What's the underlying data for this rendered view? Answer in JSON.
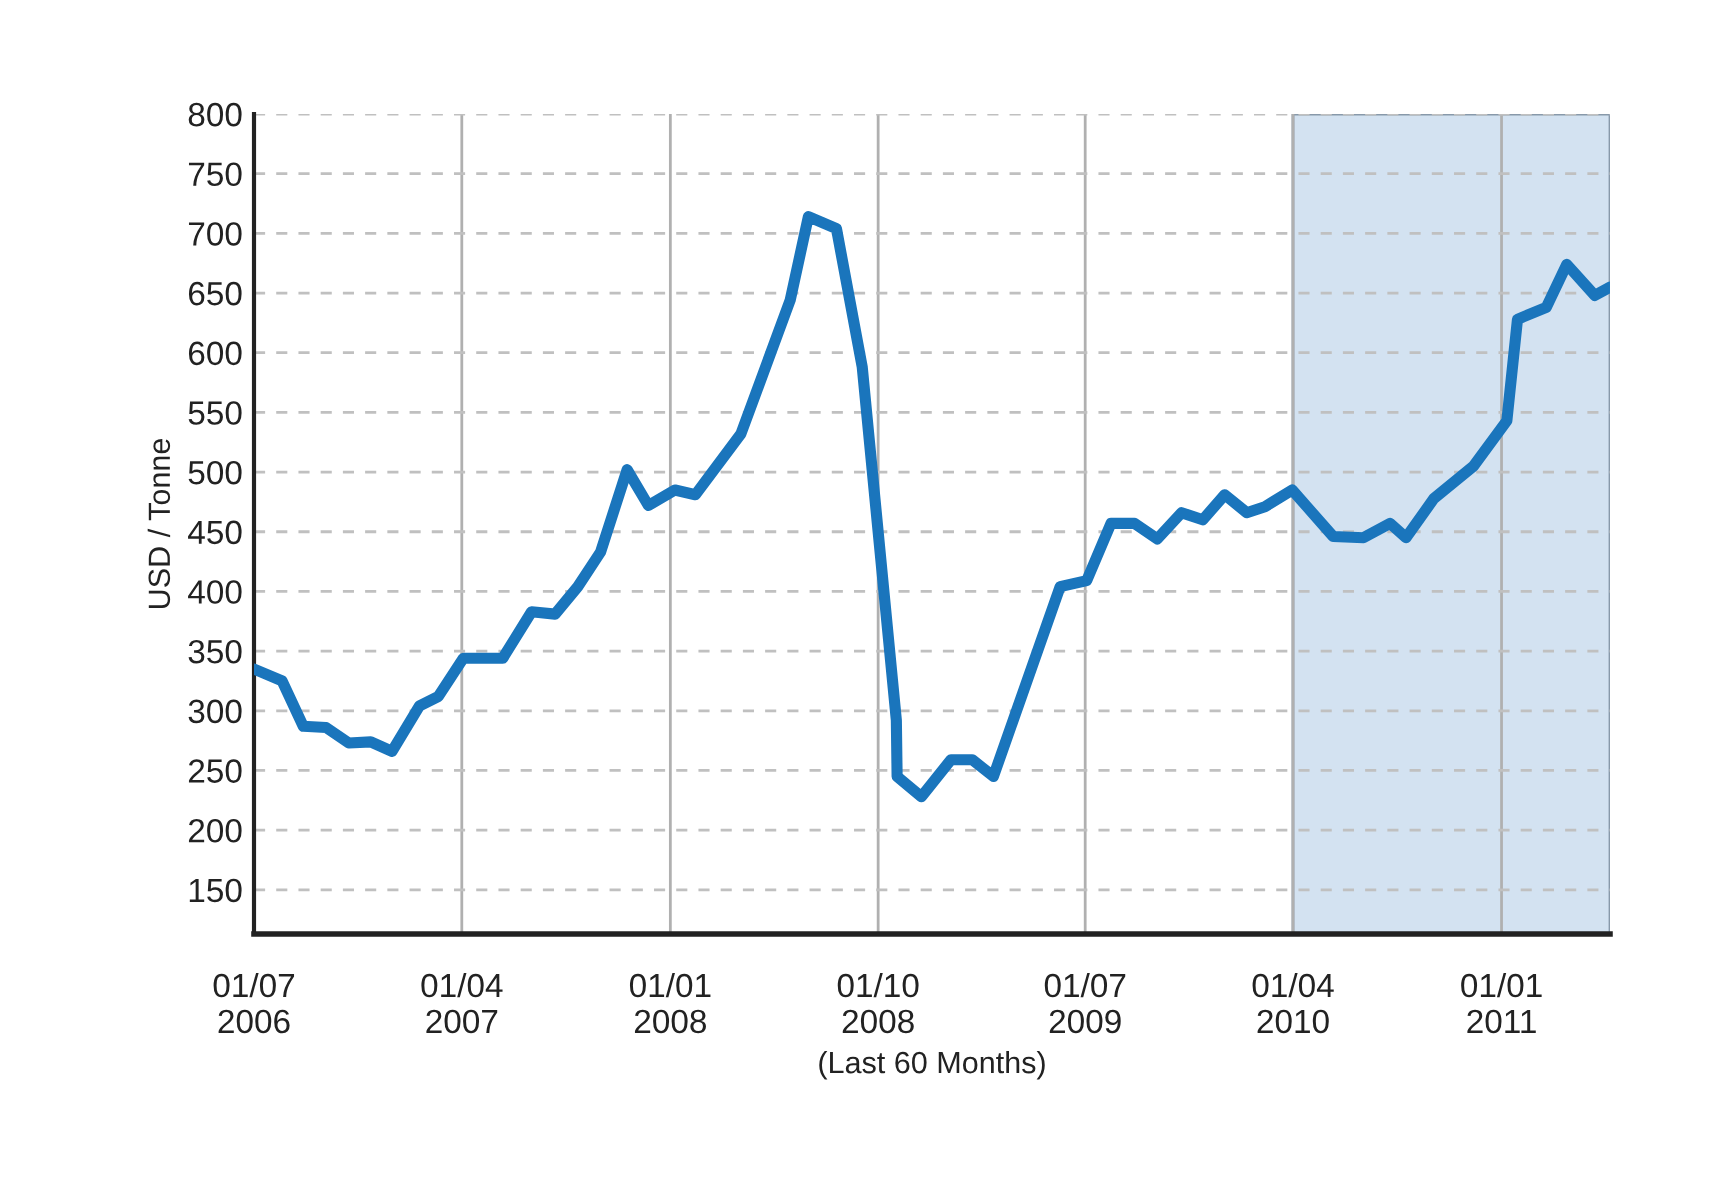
{
  "chart_data": {
    "type": "line",
    "xlabel": "(Last 60 Months)",
    "ylabel": "USD / Tonne",
    "x": [
      "2006-07-01",
      "2006-08-07",
      "2006-09-04",
      "2006-10-04",
      "2006-11-03",
      "2006-12-02",
      "2006-12-30",
      "2007-02-04",
      "2007-03-01",
      "2007-04-03",
      "2007-05-25",
      "2007-07-02",
      "2007-08-02",
      "2007-09-01",
      "2007-10-01",
      "2007-11-05",
      "2007-12-03",
      "2008-01-07",
      "2008-02-03",
      "2008-04-03",
      "2008-06-07",
      "2008-07-01",
      "2008-08-07",
      "2008-09-10",
      "2008-10-25",
      "2008-10-26",
      "2008-11-27",
      "2009-01-05",
      "2009-02-02",
      "2009-03-02",
      "2009-05-29",
      "2009-07-03",
      "2009-08-04",
      "2009-09-04",
      "2009-10-04",
      "2009-11-05",
      "2009-12-03",
      "2010-01-01",
      "2010-01-30",
      "2010-02-23",
      "2010-03-31",
      "2010-05-24",
      "2010-07-03",
      "2010-08-07",
      "2010-08-28",
      "2010-10-04",
      "2010-11-25",
      "2011-01-08",
      "2011-01-22",
      "2011-03-01",
      "2011-03-28",
      "2011-05-04",
      "2011-05-24"
    ],
    "series": [
      {
        "color": "#1a75bc",
        "values": [
          335,
          325,
          287,
          286,
          273,
          274,
          266,
          304,
          312,
          344,
          344,
          383,
          381,
          404,
          433,
          502,
          472,
          485,
          481,
          532,
          644,
          714,
          704,
          588,
          292,
          245,
          228,
          259,
          259,
          245,
          404,
          409,
          457,
          457,
          444,
          466,
          460,
          481,
          466,
          471,
          485,
          446,
          445,
          457,
          445,
          478,
          505,
          543,
          628,
          638,
          674,
          648,
          655
        ]
      }
    ],
    "xlim": [
      "2006-07-01",
      "2011-05-24"
    ],
    "ylim": [
      113,
      800
    ],
    "xticks": [
      {
        "value": "2006-07-01",
        "label": "01/07\n2006"
      },
      {
        "value": "2007-04-01",
        "label": "01/04\n2007"
      },
      {
        "value": "2008-01-01",
        "label": "01/01\n2008"
      },
      {
        "value": "2008-10-01",
        "label": "01/10\n2008"
      },
      {
        "value": "2009-07-01",
        "label": "01/07\n2009"
      },
      {
        "value": "2010-04-01",
        "label": "01/04\n2010"
      },
      {
        "value": "2011-01-01",
        "label": "01/01\n2011"
      }
    ],
    "yticks": [
      150,
      200,
      250,
      300,
      350,
      400,
      450,
      500,
      550,
      600,
      650,
      700,
      750,
      800
    ],
    "bands": [
      {
        "axis": "x",
        "from": "2010-04-01",
        "to": "2011-05-24",
        "color": "#d3e2f1"
      }
    ],
    "grid": true,
    "marker": "none",
    "line_style": "solid"
  }
}
